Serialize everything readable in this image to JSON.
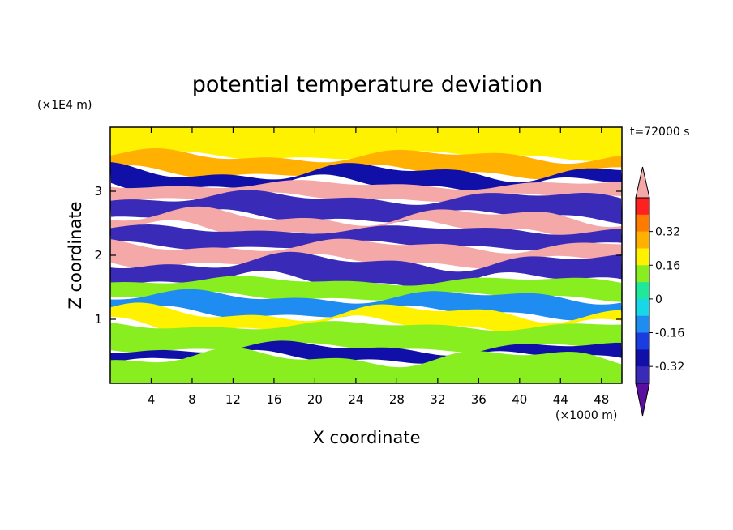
{
  "chart_data": {
    "type": "heatmap",
    "title": "potential temperature deviation",
    "xlabel": "X coordinate",
    "ylabel": "Z coordinate",
    "x_unit": "(×1000 m)",
    "y_unit": "(×1E4 m)",
    "time_label": "t=72000 s",
    "xlim": [
      0,
      50
    ],
    "ylim": [
      0,
      4
    ],
    "x_ticks": [
      4,
      8,
      12,
      16,
      20,
      24,
      28,
      32,
      36,
      40,
      44,
      48
    ],
    "y_ticks": [
      1,
      2,
      3
    ],
    "colorbar": {
      "levels": [
        -0.48,
        -0.4,
        -0.32,
        -0.24,
        -0.16,
        -0.08,
        0,
        0.08,
        0.16,
        0.24,
        0.32,
        0.4,
        0.48
      ],
      "colors": [
        "#5a0f9e",
        "#3a2ab8",
        "#1010a8",
        "#1a3de0",
        "#1e8cf0",
        "#18d8e8",
        "#20e89a",
        "#88ee20",
        "#fff200",
        "#ffb000",
        "#ff7a00",
        "#ff2020",
        "#f4a8a8"
      ],
      "tick_labels": [
        "0.32",
        "0.16",
        "0",
        "-0.16",
        "-0.32"
      ],
      "tick_values": [
        0.32,
        0.16,
        0,
        -0.16,
        -0.32
      ],
      "extend": "both"
    },
    "bands": [
      {
        "z0": 3.55,
        "z1": 4.0,
        "value": 0.08
      },
      {
        "z0": 3.3,
        "z1": 3.55,
        "value": 0.2
      },
      {
        "z0": 3.1,
        "z1": 3.3,
        "value": -0.36
      },
      {
        "z0": 2.9,
        "z1": 3.1,
        "value": 0.5
      },
      {
        "z0": 2.6,
        "z1": 2.9,
        "value": -0.44
      },
      {
        "z0": 2.4,
        "z1": 2.6,
        "value": 0.5
      },
      {
        "z0": 2.15,
        "z1": 2.4,
        "value": -0.44
      },
      {
        "z0": 1.9,
        "z1": 2.15,
        "value": 0.5
      },
      {
        "z0": 1.6,
        "z1": 1.9,
        "value": -0.44
      },
      {
        "z0": 1.35,
        "z1": 1.6,
        "value": 0.04
      },
      {
        "z0": 1.1,
        "z1": 1.35,
        "value": -0.2
      },
      {
        "z0": 0.9,
        "z1": 1.1,
        "value": 0.08
      },
      {
        "z0": 0.55,
        "z1": 0.9,
        "value": 0.0
      },
      {
        "z0": 0.4,
        "z1": 0.55,
        "value": -0.36
      },
      {
        "z0": 0.0,
        "z1": 0.4,
        "value": 0.04
      }
    ]
  }
}
